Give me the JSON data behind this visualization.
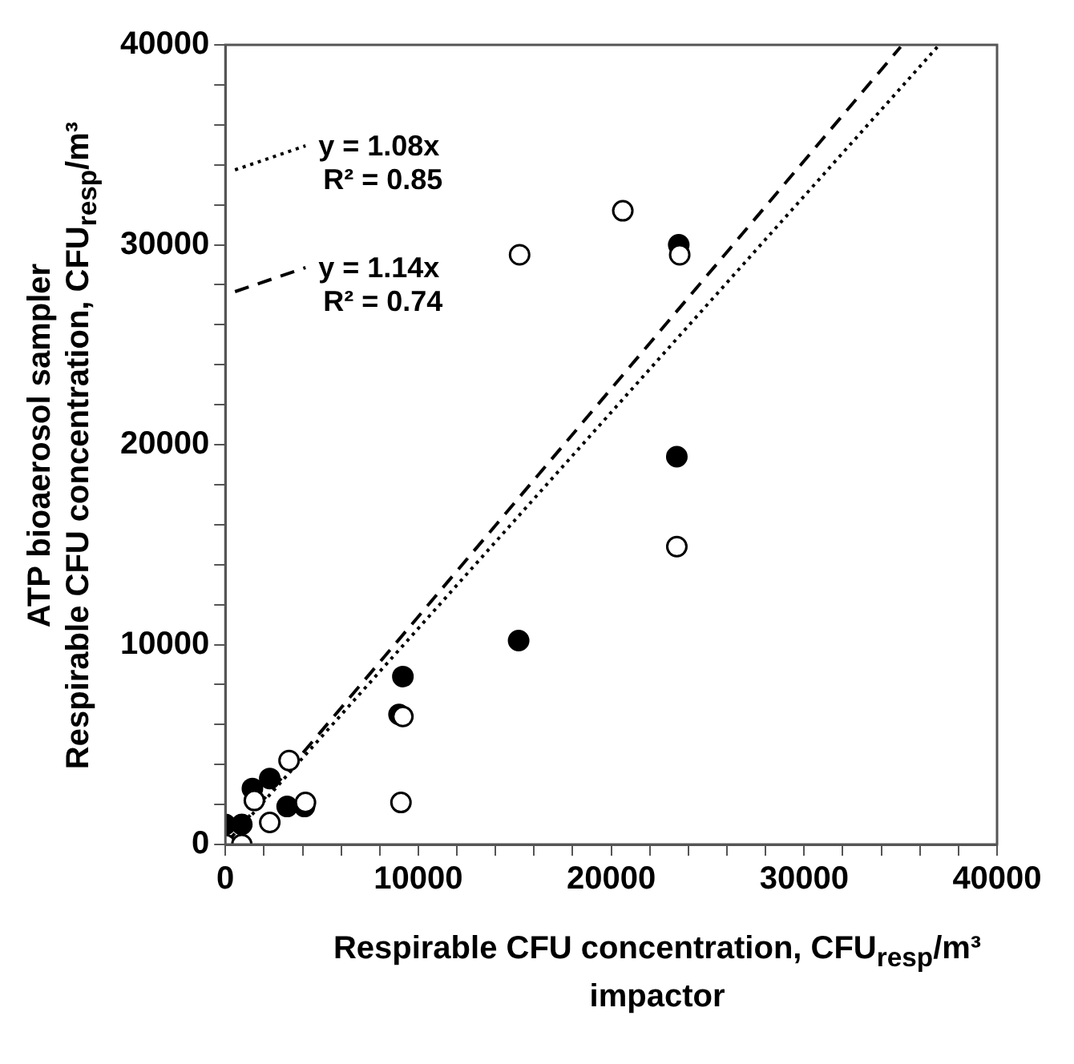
{
  "chart_data": {
    "type": "scatter",
    "xlabel": "Respirable CFU concentration, CFU$_{resp}$/m³\nimpactor",
    "ylabel": "ATP bioaerosol sampler\nRespirable CFU concentration, CFU$_{resp}$/m³",
    "annotations": [
      "y = 1.08x\nR² = 0.85",
      "y = 1.14x\nR² = 0.74"
    ],
    "xlim": [
      0,
      40000
    ],
    "ylim": [
      0,
      40000
    ],
    "xticks": [
      0,
      {
        "value": 2000,
        "label": null
      },
      {
        "value": 4000,
        "label": null
      },
      {
        "value": 6000,
        "label": null
      },
      {
        "value": 8000,
        "label": null
      },
      10000,
      {
        "value": 12000,
        "label": null
      },
      {
        "value": 14000,
        "label": null
      },
      {
        "value": 16000,
        "label": null
      },
      {
        "value": 18000,
        "label": null
      },
      20000,
      {
        "value": 22000,
        "label": null
      },
      {
        "value": 24000,
        "label": null
      },
      {
        "value": 26000,
        "label": null
      },
      {
        "value": 28000,
        "label": null
      },
      30000,
      {
        "value": 32000,
        "label": null
      },
      {
        "value": 34000,
        "label": null
      },
      {
        "value": 36000,
        "label": null
      },
      {
        "value": 38000,
        "label": null
      },
      40000
    ],
    "yticks": [
      0,
      {
        "value": 2000,
        "label": null
      },
      {
        "value": 4000,
        "label": null
      },
      {
        "value": 6000,
        "label": null
      },
      {
        "value": 8000,
        "label": null
      },
      10000,
      {
        "value": 12000,
        "label": null
      },
      {
        "value": 14000,
        "label": null
      },
      {
        "value": 16000,
        "label": null
      },
      {
        "value": 18000,
        "label": null
      },
      20000,
      {
        "value": 22000,
        "label": null
      },
      {
        "value": 24000,
        "label": null
      },
      {
        "value": 26000,
        "label": null
      },
      {
        "value": 28000,
        "label": null
      },
      30000,
      {
        "value": 32000,
        "label": null
      },
      {
        "value": 34000,
        "label": null
      },
      {
        "value": 36000,
        "label": null
      },
      {
        "value": 38000,
        "label": null
      },
      40000
    ],
    "grid": false,
    "series": [
      {
        "type": "scatter",
        "marker": "circle",
        "color": "#000000",
        "x": [
          0,
          850,
          1400,
          2300,
          3200,
          4100,
          9000,
          9200,
          15200,
          23400,
          23500
        ],
        "values": [
          1000,
          1000,
          2800,
          3300,
          1900,
          1900,
          6500,
          8400,
          10200,
          19400,
          30000
        ]
      },
      {
        "type": "scatter",
        "marker": "circle",
        "color": "#ffffff",
        "x": [
          0,
          850,
          1500,
          2300,
          3300,
          4150,
          9100,
          9200,
          15250,
          20600,
          23400,
          23550
        ],
        "values": [
          0,
          0,
          2200,
          1100,
          4200,
          2100,
          2100,
          6400,
          29500,
          31700,
          14900,
          29500
        ]
      },
      {
        "type": "line",
        "color": "#000000",
        "line_style": "dotted",
        "x": [
          0,
          37000
        ],
        "values": [
          0,
          40000
        ]
      },
      {
        "type": "line",
        "color": "#000000",
        "line_style": "dashed",
        "x": [
          0,
          35000
        ],
        "values": [
          0,
          39900
        ]
      }
    ]
  }
}
